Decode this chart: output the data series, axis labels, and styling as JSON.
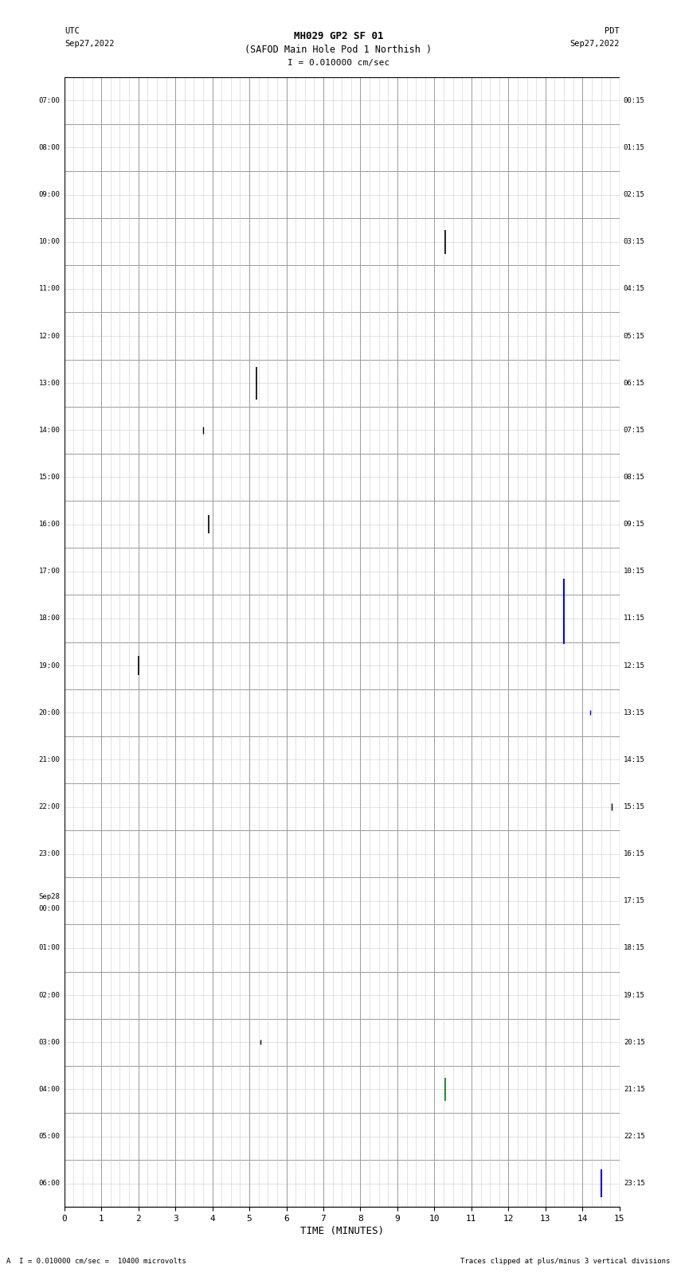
{
  "title_line1": "MH029 GP2 SF 01",
  "title_line2": "(SAFOD Main Hole Pod 1 Northish )",
  "scale_bar": "I = 0.010000 cm/sec",
  "utc_label": "UTC",
  "utc_date": "Sep27,2022",
  "pdt_label": "PDT",
  "pdt_date": "Sep27,2022",
  "footer_left": "A  I = 0.010000 cm/sec =  10400 microvolts",
  "footer_right": "Traces clipped at plus/minus 3 vertical divisions",
  "xlabel": "TIME (MINUTES)",
  "xlim": [
    0,
    15
  ],
  "xticks": [
    0,
    1,
    2,
    3,
    4,
    5,
    6,
    7,
    8,
    9,
    10,
    11,
    12,
    13,
    14,
    15
  ],
  "num_rows": 24,
  "row_labels_left": [
    "07:00",
    "08:00",
    "09:00",
    "10:00",
    "11:00",
    "12:00",
    "13:00",
    "14:00",
    "15:00",
    "16:00",
    "17:00",
    "18:00",
    "19:00",
    "20:00",
    "21:00",
    "22:00",
    "23:00",
    "Sep28\n00:00",
    "01:00",
    "02:00",
    "03:00",
    "04:00",
    "05:00",
    "06:00"
  ],
  "row_labels_right": [
    "00:15",
    "01:15",
    "02:15",
    "03:15",
    "04:15",
    "05:15",
    "06:15",
    "07:15",
    "08:15",
    "09:15",
    "10:15",
    "11:15",
    "12:15",
    "13:15",
    "14:15",
    "15:15",
    "16:15",
    "17:15",
    "18:15",
    "19:15",
    "20:15",
    "21:15",
    "22:15",
    "23:15"
  ],
  "bg_color": "#ffffff",
  "grid_color_major": "#999999",
  "grid_color_minor": "#cccccc",
  "spikes": [
    {
      "row": 3,
      "x": 10.3,
      "amp_up": 0.25,
      "amp_down": 0.25,
      "color": "black",
      "lw": 1.2
    },
    {
      "row": 6,
      "x": 5.2,
      "amp_up": 0.35,
      "amp_down": 0.35,
      "color": "black",
      "lw": 1.2
    },
    {
      "row": 7,
      "x": 3.75,
      "amp_up": 0.08,
      "amp_down": 0.08,
      "color": "black",
      "lw": 1.0
    },
    {
      "row": 9,
      "x": 3.9,
      "amp_up": 0.2,
      "amp_down": 0.2,
      "color": "black",
      "lw": 1.2
    },
    {
      "row": 11,
      "x": 13.5,
      "amp_up": 0.85,
      "amp_down": 0.55,
      "color": "blue",
      "lw": 1.5
    },
    {
      "row": 12,
      "x": 2.0,
      "amp_up": 0.2,
      "amp_down": 0.2,
      "color": "black",
      "lw": 1.2
    },
    {
      "row": 13,
      "x": 14.2,
      "amp_up": 0.05,
      "amp_down": 0.05,
      "color": "blue",
      "lw": 1.0
    },
    {
      "row": 15,
      "x": 14.8,
      "amp_up": 0.08,
      "amp_down": 0.08,
      "color": "black",
      "lw": 1.0
    },
    {
      "row": 20,
      "x": 5.3,
      "amp_up": 0.05,
      "amp_down": 0.05,
      "color": "black",
      "lw": 1.0
    },
    {
      "row": 21,
      "x": 10.3,
      "amp_up": 0.25,
      "amp_down": 0.25,
      "color": "green",
      "lw": 1.2
    },
    {
      "row": 23,
      "x": 14.5,
      "amp_up": 0.3,
      "amp_down": 0.3,
      "color": "blue",
      "lw": 1.5
    }
  ],
  "minor_grid_divisions": 4,
  "num_subrows": 2
}
